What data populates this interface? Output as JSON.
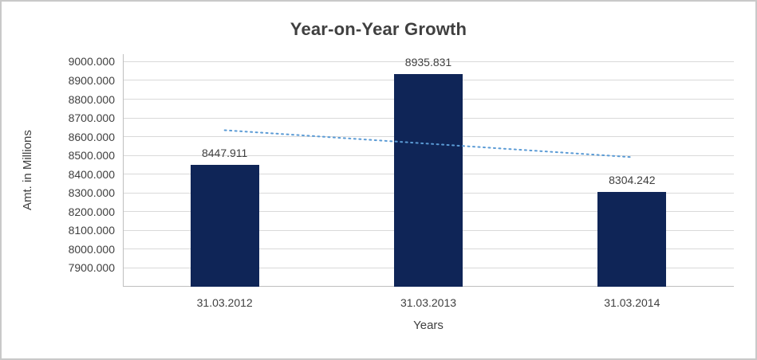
{
  "chart_data": {
    "type": "bar",
    "title": "Year-on-Year Growth",
    "xlabel": "Years",
    "ylabel": "Amt. in Millions",
    "categories": [
      "31.03.2012",
      "31.03.2013",
      "31.03.2014"
    ],
    "values": [
      8447.911,
      8935.831,
      8304.242
    ],
    "data_labels": [
      "8447.911",
      "8935.831",
      "8304.242"
    ],
    "ylim": [
      7800,
      9040
    ],
    "y_ticks": [
      {
        "value": 7900,
        "label": "7900.000"
      },
      {
        "value": 8000,
        "label": "8000.000"
      },
      {
        "value": 8100,
        "label": "8100.000"
      },
      {
        "value": 8200,
        "label": "8200.000"
      },
      {
        "value": 8300,
        "label": "8300.000"
      },
      {
        "value": 8400,
        "label": "8400.000"
      },
      {
        "value": 8500,
        "label": "8500.000"
      },
      {
        "value": 8600,
        "label": "8600.000"
      },
      {
        "value": 8700,
        "label": "8700.000"
      },
      {
        "value": 8800,
        "label": "8800.000"
      },
      {
        "value": 8900,
        "label": "8900.000"
      },
      {
        "value": 9000,
        "label": "9000.000"
      }
    ],
    "grid": true,
    "legend": false,
    "trendline": {
      "style": "dotted",
      "start_category_index": 0,
      "end_category_index": 2,
      "start_value": 8634.5,
      "end_value": 8490.8
    },
    "colors": {
      "bar": "#0f2557",
      "trendline": "#5b9bd5",
      "gridline": "#d9d9d9",
      "axis_line": "#bfbfbf",
      "text": "#3f3f3f",
      "title_text": "#404040",
      "frame_border": "#c9c9c9",
      "background": "#ffffff"
    }
  }
}
